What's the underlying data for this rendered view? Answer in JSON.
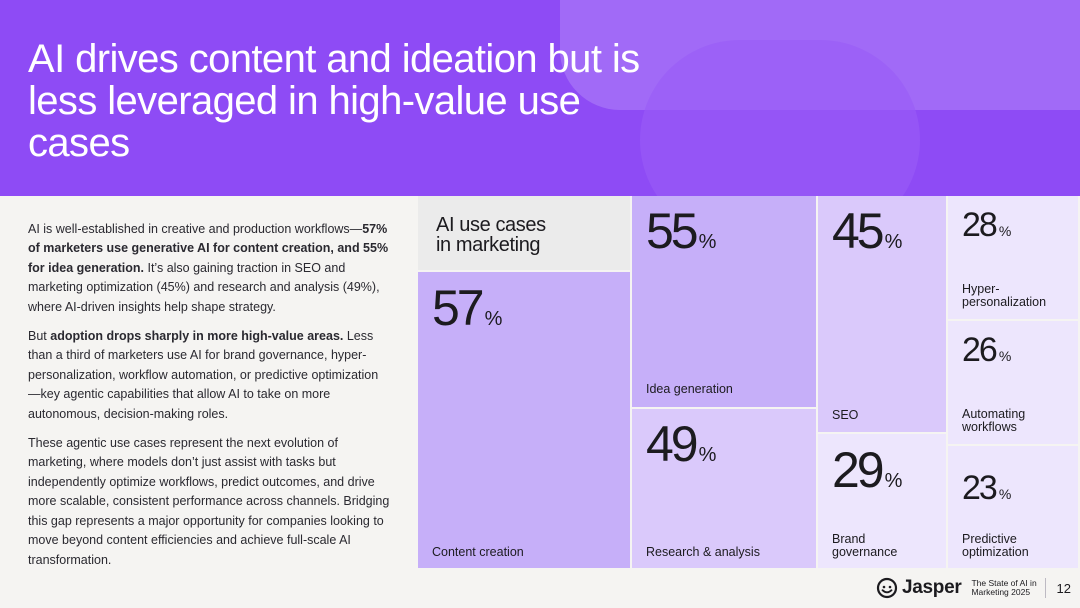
{
  "header": {
    "title": "AI drives content and ideation but is less leveraged in high-value use cases"
  },
  "body": {
    "p1_pre": "AI is well-established in creative and production workflows—",
    "p1_bold": "57% of marketers use generative AI for content creation, and 55% for idea generation.",
    "p1_post": " It’s also gaining traction in SEO and marketing optimization (45%) and research and analysis (49%), where AI-driven insights help shape strategy.",
    "p2_pre": "But ",
    "p2_bold": "adoption drops sharply in more high-value areas.",
    "p2_post": " Less than a third of marketers use AI for brand governance, hyper-personalization, workflow automation, or predictive optimization—key agentic capabilities that allow AI to take on more autonomous, decision-making roles.",
    "p3": "These agentic use cases represent the next evolution of marketing, where models don’t just assist with tasks but independently optimize workflows, predict outcomes, and drive more scalable, consistent performance across channels. Bridging this gap represents a major opportunity for companies looking to move beyond content efficiencies and achieve full-scale AI transformation."
  },
  "chart_data": {
    "type": "treemap",
    "title": "AI use cases in marketing",
    "unit": "%",
    "categories": [
      "Content creation",
      "Idea generation",
      "Research & analysis",
      "SEO",
      "Brand governance",
      "Hyper-personalization",
      "Automating workflows",
      "Predictive optimization"
    ],
    "values": [
      57,
      55,
      49,
      45,
      29,
      28,
      26,
      23
    ],
    "colors": {
      "high": "#c6aff9",
      "mid": "#dac9fb",
      "low": "#ede6fd",
      "title_cell": "#ebebeb"
    }
  },
  "footer": {
    "brand": "Jasper",
    "report_line1": "The State of AI in",
    "report_line2": "Marketing 2025",
    "page_number": "12"
  }
}
